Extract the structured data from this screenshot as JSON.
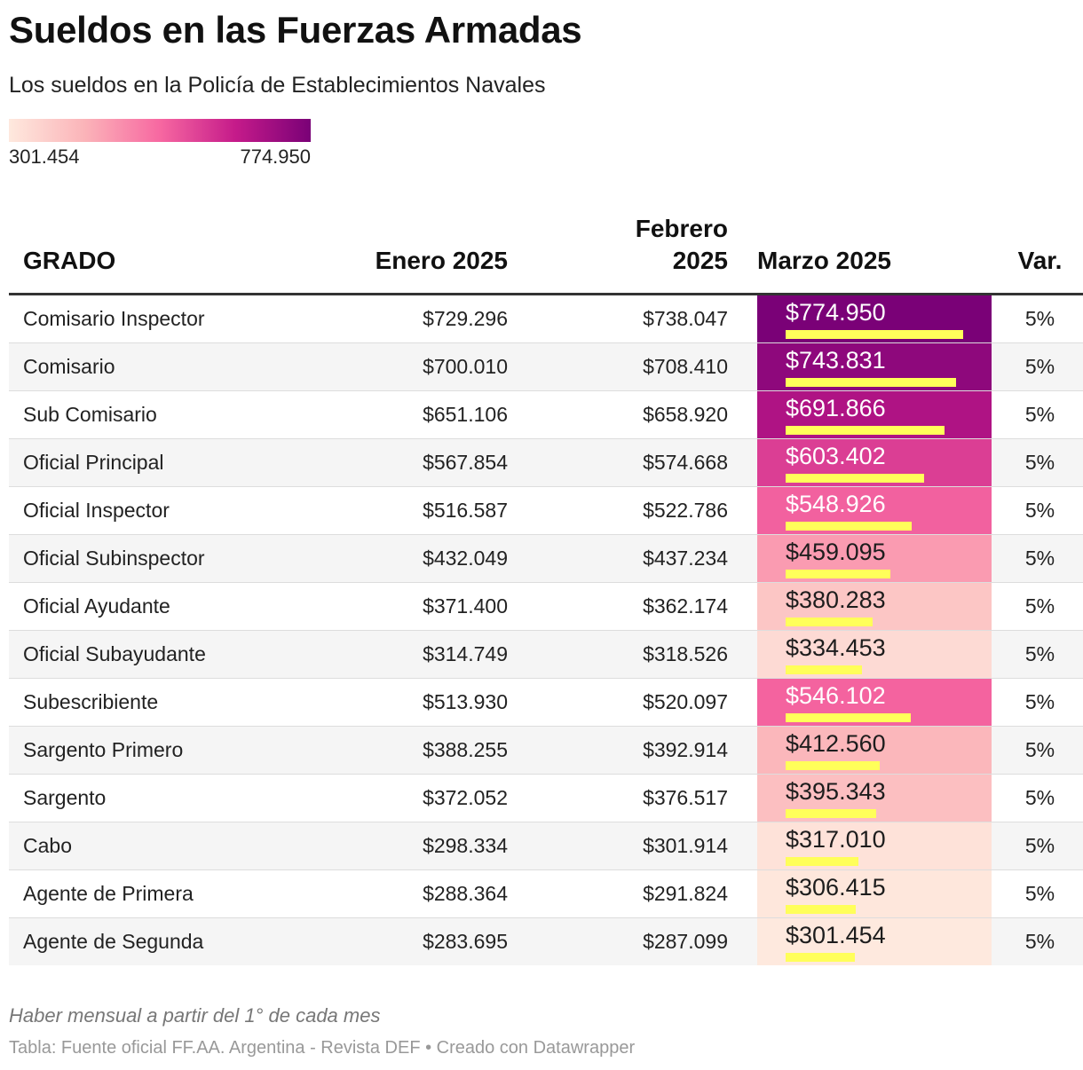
{
  "title": "Sueldos en las Fuerzas Armadas",
  "subtitle": "Los sueldos en la Policía de Establecimientos Navales",
  "legend": {
    "min_label": "301.454",
    "max_label": "774.950"
  },
  "headers": {
    "grado": "GRADO",
    "enero": "Enero 2025",
    "febrero_line1": "Febrero",
    "febrero_line2": "2025",
    "marzo": "Marzo 2025",
    "var": "Var."
  },
  "note": "Haber mensual a partir del 1° de cada mes",
  "source": "Tabla: Fuente oficial FF.AA. Argentina - Revista DEF  • Creado con Datawrapper",
  "colors": {
    "scale": [
      "#fee9de",
      "#fbb4b9",
      "#f768a1",
      "#c51b8a",
      "#7a0177"
    ],
    "bar": "#ffff5a"
  },
  "chart_data": {
    "type": "table",
    "columns": [
      "GRADO",
      "Enero 2025",
      "Febrero 2025",
      "Marzo 2025",
      "Var."
    ],
    "heatmap_column": "Marzo 2025",
    "heatmap_range": [
      301454,
      774950
    ],
    "rows": [
      {
        "grado": "Comisario Inspector",
        "enero": "$729.296",
        "febrero": "$738.047",
        "marzo": "$774.950",
        "marzo_value": 774950,
        "var": "5%"
      },
      {
        "grado": "Comisario",
        "enero": "$700.010",
        "febrero": "$708.410",
        "marzo": "$743.831",
        "marzo_value": 743831,
        "var": "5%"
      },
      {
        "grado": "Sub Comisario",
        "enero": "$651.106",
        "febrero": "$658.920",
        "marzo": "$691.866",
        "marzo_value": 691866,
        "var": "5%"
      },
      {
        "grado": "Oficial Principal",
        "enero": "$567.854",
        "febrero": "$574.668",
        "marzo": "$603.402",
        "marzo_value": 603402,
        "var": "5%"
      },
      {
        "grado": "Oficial Inspector",
        "enero": "$516.587",
        "febrero": "$522.786",
        "marzo": "$548.926",
        "marzo_value": 548926,
        "var": "5%"
      },
      {
        "grado": "Oficial Subinspector",
        "enero": "$432.049",
        "febrero": "$437.234",
        "marzo": "$459.095",
        "marzo_value": 459095,
        "var": "5%"
      },
      {
        "grado": "Oficial Ayudante",
        "enero": "$371.400",
        "febrero": "$362.174",
        "marzo": "$380.283",
        "marzo_value": 380283,
        "var": "5%"
      },
      {
        "grado": "Oficial Subayudante",
        "enero": "$314.749",
        "febrero": "$318.526",
        "marzo": "$334.453",
        "marzo_value": 334453,
        "var": "5%"
      },
      {
        "grado": "Subescribiente",
        "enero": "$513.930",
        "febrero": "$520.097",
        "marzo": "$546.102",
        "marzo_value": 546102,
        "var": "5%"
      },
      {
        "grado": "Sargento Primero",
        "enero": "$388.255",
        "febrero": "$392.914",
        "marzo": "$412.560",
        "marzo_value": 412560,
        "var": "5%"
      },
      {
        "grado": "Sargento",
        "enero": "$372.052",
        "febrero": "$376.517",
        "marzo": "$395.343",
        "marzo_value": 395343,
        "var": "5%"
      },
      {
        "grado": "Cabo",
        "enero": "$298.334",
        "febrero": "$301.914",
        "marzo": "$317.010",
        "marzo_value": 317010,
        "var": "5%"
      },
      {
        "grado": "Agente de Primera",
        "enero": "$288.364",
        "febrero": "$291.824",
        "marzo": "$306.415",
        "marzo_value": 306415,
        "var": "5%"
      },
      {
        "grado": "Agente de Segunda",
        "enero": "$283.695",
        "febrero": "$287.099",
        "marzo": "$301.454",
        "marzo_value": 301454,
        "var": "5%"
      }
    ]
  }
}
